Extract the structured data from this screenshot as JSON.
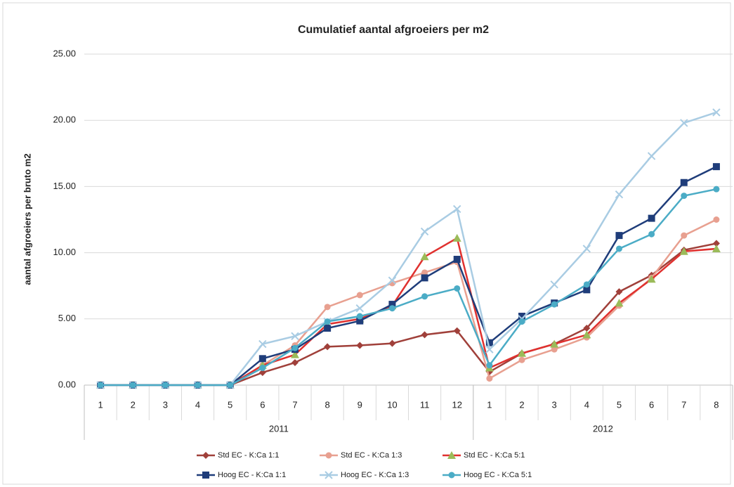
{
  "chart_data": {
    "type": "line",
    "title": "Cumulatief aantal afgroeiers per m2",
    "y_label": "aantal afgroeiers per bruto m2",
    "categories": [
      "1",
      "2",
      "3",
      "4",
      "5",
      "6",
      "7",
      "8",
      "9",
      "10",
      "11",
      "12",
      "1",
      "2",
      "3",
      "4",
      "5",
      "6",
      "7",
      "8"
    ],
    "groups": [
      "2011",
      "2012"
    ],
    "ylim": [
      0,
      25
    ],
    "yticks": [
      {
        "value": 0,
        "label": "0.00"
      },
      {
        "value": 5,
        "label": "5.00"
      },
      {
        "value": 10,
        "label": "10.00"
      },
      {
        "value": 15,
        "label": "15.00"
      },
      {
        "value": 20,
        "label": "20.00"
      },
      {
        "value": 25,
        "label": "25.00"
      }
    ],
    "grid": true,
    "series": [
      {
        "name": "Std EC - K:Ca 1:1",
        "color": "#a0403a",
        "marker": "diamond",
        "values": [
          0,
          0,
          0,
          0,
          0,
          0.95,
          1.7,
          2.9,
          3.0,
          3.15,
          3.8,
          4.1,
          1.0,
          2.4,
          3.1,
          4.3,
          7.05,
          8.3,
          10.2,
          10.7
        ]
      },
      {
        "name": "Std EC - K:Ca 1:3",
        "color": "#e8a090",
        "marker": "circle",
        "values": [
          0,
          0,
          0,
          0,
          0,
          1.5,
          3.0,
          5.9,
          6.8,
          7.7,
          8.5,
          9.3,
          0.5,
          1.9,
          2.7,
          3.6,
          6.0,
          8.1,
          11.3,
          12.5
        ]
      },
      {
        "name": "Std EC - K:Ca 5:1",
        "color": "#e0312f",
        "marker_color": "#9bbb59",
        "marker": "triangle",
        "values": [
          0,
          0,
          0,
          0,
          0,
          1.5,
          2.3,
          4.6,
          5.0,
          6.0,
          9.7,
          11.1,
          1.3,
          2.4,
          3.1,
          3.8,
          6.2,
          8.0,
          10.1,
          10.3
        ]
      },
      {
        "name": "Hoog EC - K:Ca 1:1",
        "color": "#1f3d7a",
        "marker": "square",
        "values": [
          0,
          0,
          0,
          0,
          0,
          2.0,
          2.7,
          4.3,
          4.85,
          6.1,
          8.1,
          9.5,
          3.2,
          5.2,
          6.2,
          7.2,
          11.3,
          12.6,
          15.3,
          16.5
        ]
      },
      {
        "name": "Hoog EC - K:Ca 1:3",
        "color": "#a9cce3",
        "marker": "x",
        "values": [
          0,
          0,
          0,
          0,
          0,
          3.1,
          3.7,
          4.8,
          5.8,
          7.9,
          11.6,
          13.3,
          2.7,
          5.0,
          7.6,
          10.3,
          14.4,
          17.3,
          19.8,
          20.6
        ]
      },
      {
        "name": "Hoog EC - K:Ca 5:1",
        "color": "#4bacc6",
        "marker": "circle",
        "values": [
          0,
          0,
          0,
          0,
          0,
          1.3,
          2.8,
          4.8,
          5.2,
          5.8,
          6.7,
          7.3,
          1.5,
          4.8,
          6.1,
          7.6,
          10.3,
          11.4,
          14.3,
          14.8
        ]
      }
    ]
  }
}
